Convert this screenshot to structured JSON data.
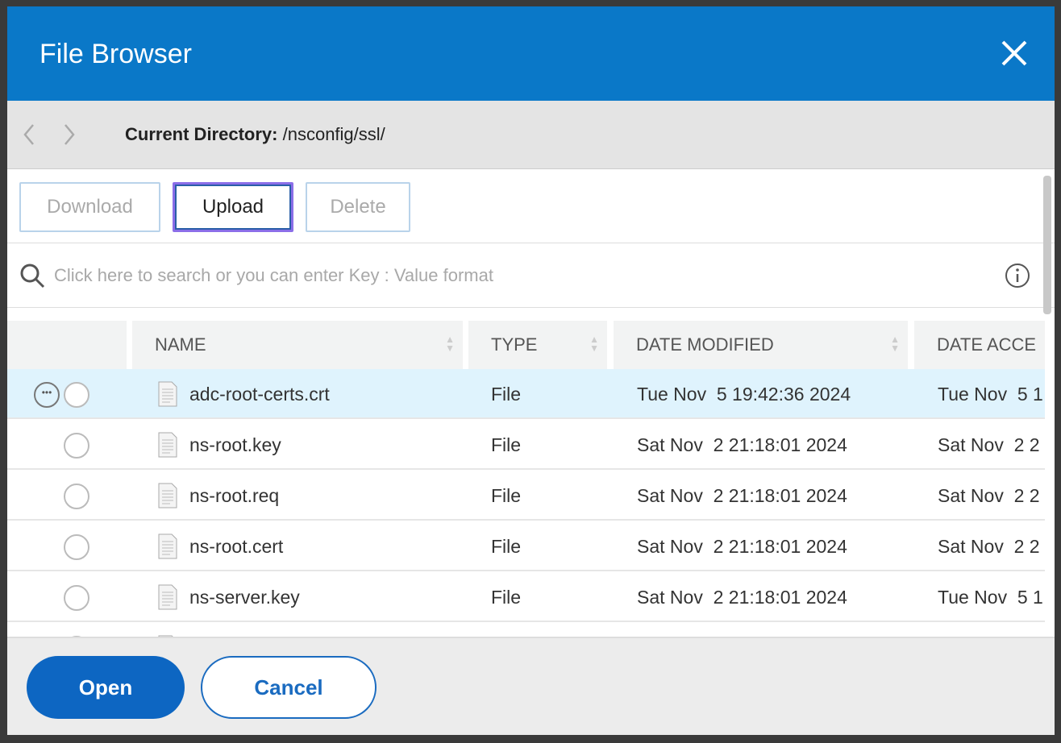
{
  "dialog": {
    "title": "File Browser"
  },
  "nav": {
    "current_directory_label": "Current Directory:",
    "current_directory": "/nsconfig/ssl/"
  },
  "toolbar": {
    "download": "Download",
    "upload": "Upload",
    "delete": "Delete"
  },
  "search": {
    "placeholder": "Click here to search or you can enter Key : Value format"
  },
  "table": {
    "columns": [
      "NAME",
      "TYPE",
      "DATE MODIFIED",
      "DATE ACCE"
    ],
    "rows": [
      {
        "name": "adc-root-certs.crt",
        "type": "File",
        "modified": "Tue Nov  5 19:42:36 2024",
        "accessed": "Tue Nov  5 1"
      },
      {
        "name": "ns-root.key",
        "type": "File",
        "modified": "Sat Nov  2 21:18:01 2024",
        "accessed": "Sat Nov  2 2"
      },
      {
        "name": "ns-root.req",
        "type": "File",
        "modified": "Sat Nov  2 21:18:01 2024",
        "accessed": "Sat Nov  2 2"
      },
      {
        "name": "ns-root.cert",
        "type": "File",
        "modified": "Sat Nov  2 21:18:01 2024",
        "accessed": "Sat Nov  2 2"
      },
      {
        "name": "ns-server.key",
        "type": "File",
        "modified": "Sat Nov  2 21:18:01 2024",
        "accessed": "Tue Nov  5 1"
      }
    ]
  },
  "footer": {
    "open": "Open",
    "cancel": "Cancel"
  },
  "colors": {
    "header": "#0a78c8",
    "primary": "#0d66c2",
    "selected_row": "#dff3fd"
  }
}
